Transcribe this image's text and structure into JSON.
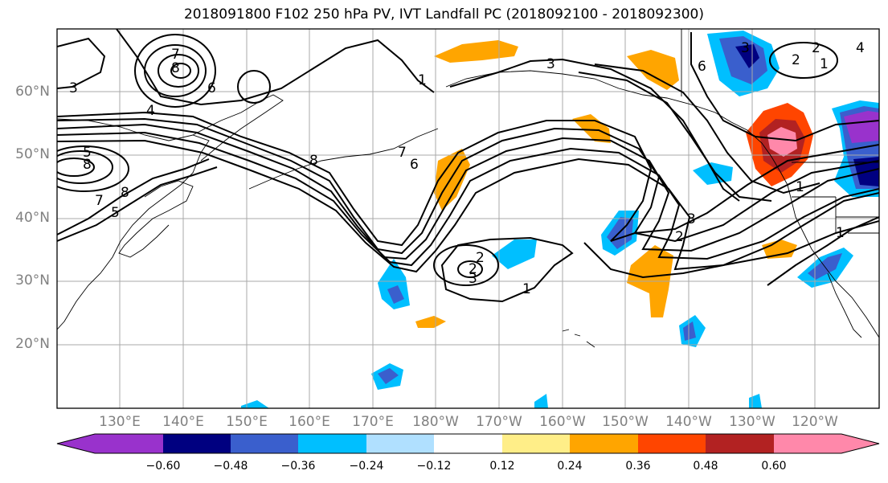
{
  "title": "2018091800 F102 250 hPa PV, IVT Landfall PC (2018092100 - 2018092300)",
  "map": {
    "lon_range": [
      120,
      238
    ],
    "lat_range": [
      10,
      70
    ],
    "lat_labels": [
      "20°N",
      "30°N",
      "40°N",
      "50°N",
      "60°N"
    ],
    "lon_labels": [
      "130°E",
      "140°E",
      "150°E",
      "160°E",
      "170°E",
      "180°W",
      "170°W",
      "160°W",
      "150°W",
      "140°W",
      "130°W",
      "120°W"
    ],
    "grid": true
  },
  "colorbar": {
    "ticks": [
      "−0.60",
      "−0.48",
      "−0.36",
      "−0.24",
      "−0.12",
      "0.12",
      "0.24",
      "0.36",
      "0.48",
      "0.60"
    ],
    "colors": [
      "#9932cc",
      "#000080",
      "#3a5fcd",
      "#00bfff",
      "#b0e0ff",
      "#ffffff",
      "#ffee88",
      "#ffa500",
      "#ff4500",
      "#b22222",
      "#ff88aa"
    ]
  },
  "contour_labels": [
    "3",
    "7",
    "8",
    "6",
    "4",
    "5",
    "8",
    "7",
    "8",
    "5",
    "8",
    "7",
    "1",
    "6",
    "3",
    "2",
    "1",
    "2",
    "3",
    "1",
    "2",
    "3",
    "1",
    "6",
    "3",
    "2",
    "4",
    "2",
    "1"
  ]
}
